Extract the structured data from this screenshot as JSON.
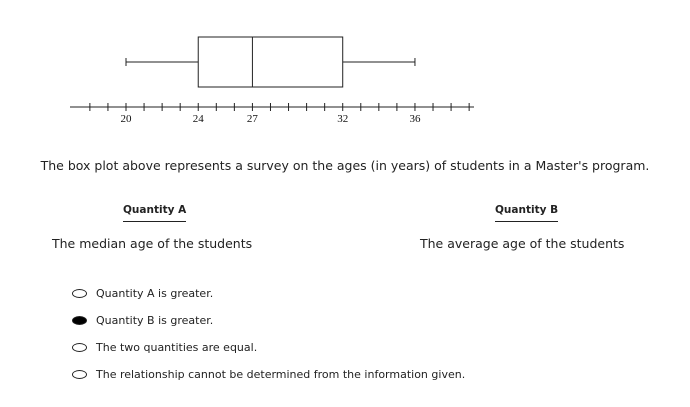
{
  "chart_data": {
    "type": "boxplot",
    "min": 20,
    "q1": 24,
    "median": 27,
    "q3": 32,
    "max": 36,
    "axis_range": [
      18,
      39
    ],
    "axis_minor_tick_step": 1,
    "tick_labels": [
      "20",
      "24",
      "27",
      "32",
      "36"
    ],
    "tick_values": [
      20,
      24,
      27,
      32,
      36
    ]
  },
  "question": "The box plot above represents a survey on the ages (in years) of students in a Master's program.",
  "quantity_a": {
    "heading": "Quantity A",
    "text": "The median age of the students"
  },
  "quantity_b": {
    "heading": "Quantity B",
    "text": "The average age of the students"
  },
  "options": [
    {
      "label": "Quantity A is greater.",
      "selected": false
    },
    {
      "label": "Quantity B is greater.",
      "selected": true
    },
    {
      "label": "The two quantities are equal.",
      "selected": false
    },
    {
      "label": "The relationship cannot be determined from the information given.",
      "selected": false
    }
  ]
}
